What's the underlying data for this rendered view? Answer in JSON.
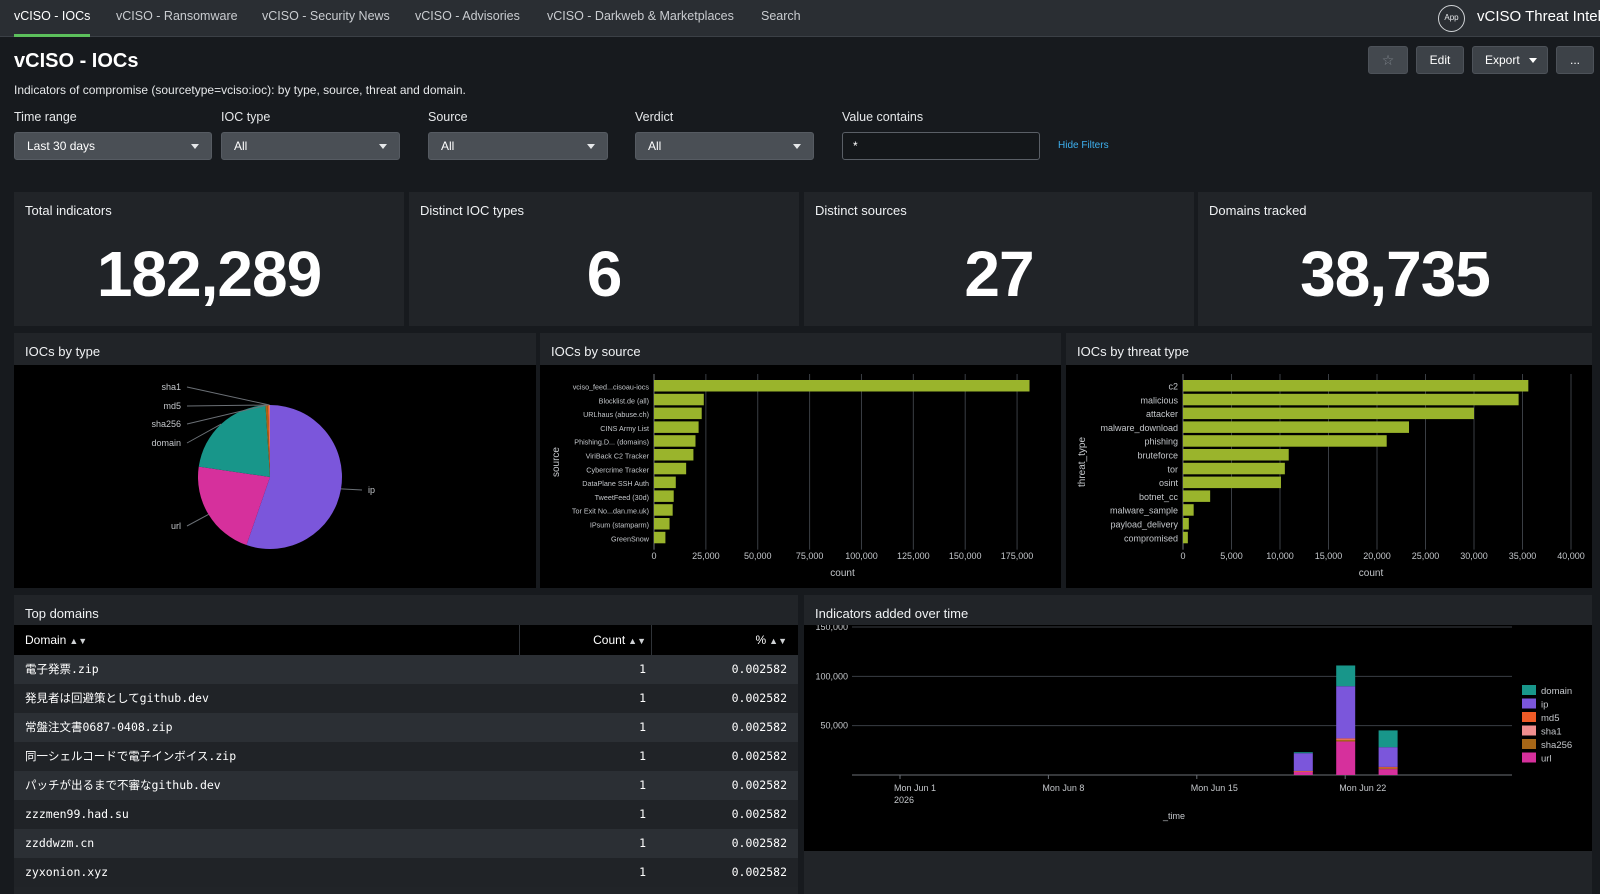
{
  "nav": {
    "tabs": [
      "vCISO - IOCs",
      "vCISO - Ransomware",
      "vCISO - Security News",
      "vCISO - Advisories",
      "vCISO - Darkweb & Marketplaces",
      "Search"
    ],
    "app_badge": "App",
    "app_title": "vCISO Threat Intel"
  },
  "header": {
    "title": "vCISO - IOCs",
    "description": "Indicators of compromise (sourcetype=vciso:ioc): by type, source, threat and domain.",
    "star_icon": "☆",
    "edit_label": "Edit",
    "export_label": "Export",
    "more_label": "..."
  },
  "filters": {
    "time_range": {
      "label": "Time range",
      "value": "Last 30 days"
    },
    "ioc_type": {
      "label": "IOC type",
      "value": "All"
    },
    "source": {
      "label": "Source",
      "value": "All"
    },
    "verdict": {
      "label": "Verdict",
      "value": "All"
    },
    "value_contains": {
      "label": "Value contains",
      "value": "*"
    },
    "hide_filters": "Hide Filters"
  },
  "singles": [
    {
      "title": "Total indicators",
      "value": "182,289"
    },
    {
      "title": "Distinct IOC types",
      "value": "6"
    },
    {
      "title": "Distinct sources",
      "value": "27"
    },
    {
      "title": "Domains tracked",
      "value": "38,735"
    }
  ],
  "panels": {
    "by_type": "IOCs by type",
    "by_source": "IOCs by source",
    "by_threat": "IOCs by threat type",
    "top_domains": "Top domains",
    "over_time": "Indicators added over time"
  },
  "colors": {
    "bar": "#9ab42c",
    "domain": "#18968a",
    "ip": "#7b56db",
    "md5": "#ef5b27",
    "sha1": "#f08e8e",
    "sha256": "#a66617",
    "url": "#d6309c"
  },
  "chart_data": [
    {
      "type": "pie",
      "title": "IOCs by type",
      "slices": [
        {
          "label": "ip",
          "value": 55.3
        },
        {
          "label": "url",
          "value": 22.0
        },
        {
          "label": "domain",
          "value": 21.7
        },
        {
          "label": "sha256",
          "value": 0.5
        },
        {
          "label": "md5",
          "value": 0.3
        },
        {
          "label": "sha1",
          "value": 0.2
        }
      ]
    },
    {
      "type": "bar",
      "orientation": "horizontal",
      "title": "IOCs by source",
      "xlabel": "count",
      "ylabel": "source",
      "xlim": [
        0,
        187500
      ],
      "xticks": [
        "0",
        "25,000",
        "50,000",
        "75,000",
        "100,000",
        "125,000",
        "150,000",
        "175,000"
      ],
      "categories": [
        "vciso_feed...cisoau-iocs",
        "Blocklist.de (all)",
        "URLhaus (abuse.ch)",
        "CINS Army List",
        "Phishing.D... (domains)",
        "ViriBack C2 Tracker",
        "Cybercrime Tracker",
        "DataPlane SSH Auth",
        "TweetFeed (30d)",
        "Tor Exit No...dan.me.uk)",
        "IPsum (stamparm)",
        "GreenSnow"
      ],
      "values": [
        181000,
        24000,
        23000,
        21500,
        20000,
        19000,
        15500,
        10500,
        9500,
        9000,
        7500,
        5500
      ]
    },
    {
      "type": "bar",
      "orientation": "horizontal",
      "title": "IOCs by threat type",
      "xlabel": "count",
      "ylabel": "threat_type",
      "xlim": [
        0,
        40000
      ],
      "xticks": [
        "0",
        "5,000",
        "10,000",
        "15,000",
        "20,000",
        "25,000",
        "30,000",
        "35,000",
        "40,000"
      ],
      "categories": [
        "c2",
        "malicious",
        "attacker",
        "malware_download",
        "phishing",
        "bruteforce",
        "tor",
        "osint",
        "botnet_cc",
        "malware_sample",
        "payload_delivery",
        "compromised"
      ],
      "values": [
        35600,
        34600,
        30000,
        23300,
        21000,
        10900,
        10500,
        10100,
        2800,
        1100,
        600,
        500
      ]
    },
    {
      "type": "bar",
      "stacked": true,
      "title": "Indicators added over time",
      "xlabel": "_time",
      "ylim": [
        0,
        150000
      ],
      "yticks": [
        "150,000",
        "100,000",
        "50,000"
      ],
      "xticks": [
        [
          "Mon Jun 1",
          "2026"
        ],
        [
          "Mon Jun 8",
          ""
        ],
        [
          "Mon Jun 15",
          ""
        ],
        [
          "Mon Jun 22",
          ""
        ]
      ],
      "legend": [
        "domain",
        "ip",
        "md5",
        "sha1",
        "sha256",
        "url"
      ],
      "legend_position": "right",
      "bars": [
        {
          "day": 20,
          "domain": 1000,
          "ip": 18000,
          "md5": 200,
          "sha1": 100,
          "sha256": 300,
          "url": 3500
        },
        {
          "day": 22,
          "domain": 21000,
          "ip": 53000,
          "md5": 1000,
          "sha1": 500,
          "sha256": 1500,
          "url": 34000
        },
        {
          "day": 24,
          "domain": 17000,
          "ip": 20000,
          "md5": 800,
          "sha1": 400,
          "sha256": 1000,
          "url": 6000
        }
      ]
    }
  ],
  "top_domains": {
    "columns": [
      "Domain",
      "Count",
      "%"
    ],
    "rows": [
      [
        "電子発票.zip",
        "1",
        "0.002582"
      ],
      [
        "発見者は回避策としてgithub.dev",
        "1",
        "0.002582"
      ],
      [
        "常盤注文書0687-0408.zip",
        "1",
        "0.002582"
      ],
      [
        "同一シェルコードで電子インボイス.zip",
        "1",
        "0.002582"
      ],
      [
        "パッチが出るまで不審なgithub.dev",
        "1",
        "0.002582"
      ],
      [
        "zzzmen99.had.su",
        "1",
        "0.002582"
      ],
      [
        "zzddwzm.cn",
        "1",
        "0.002582"
      ],
      [
        "zyxonion.xyz",
        "1",
        "0.002582"
      ]
    ]
  }
}
